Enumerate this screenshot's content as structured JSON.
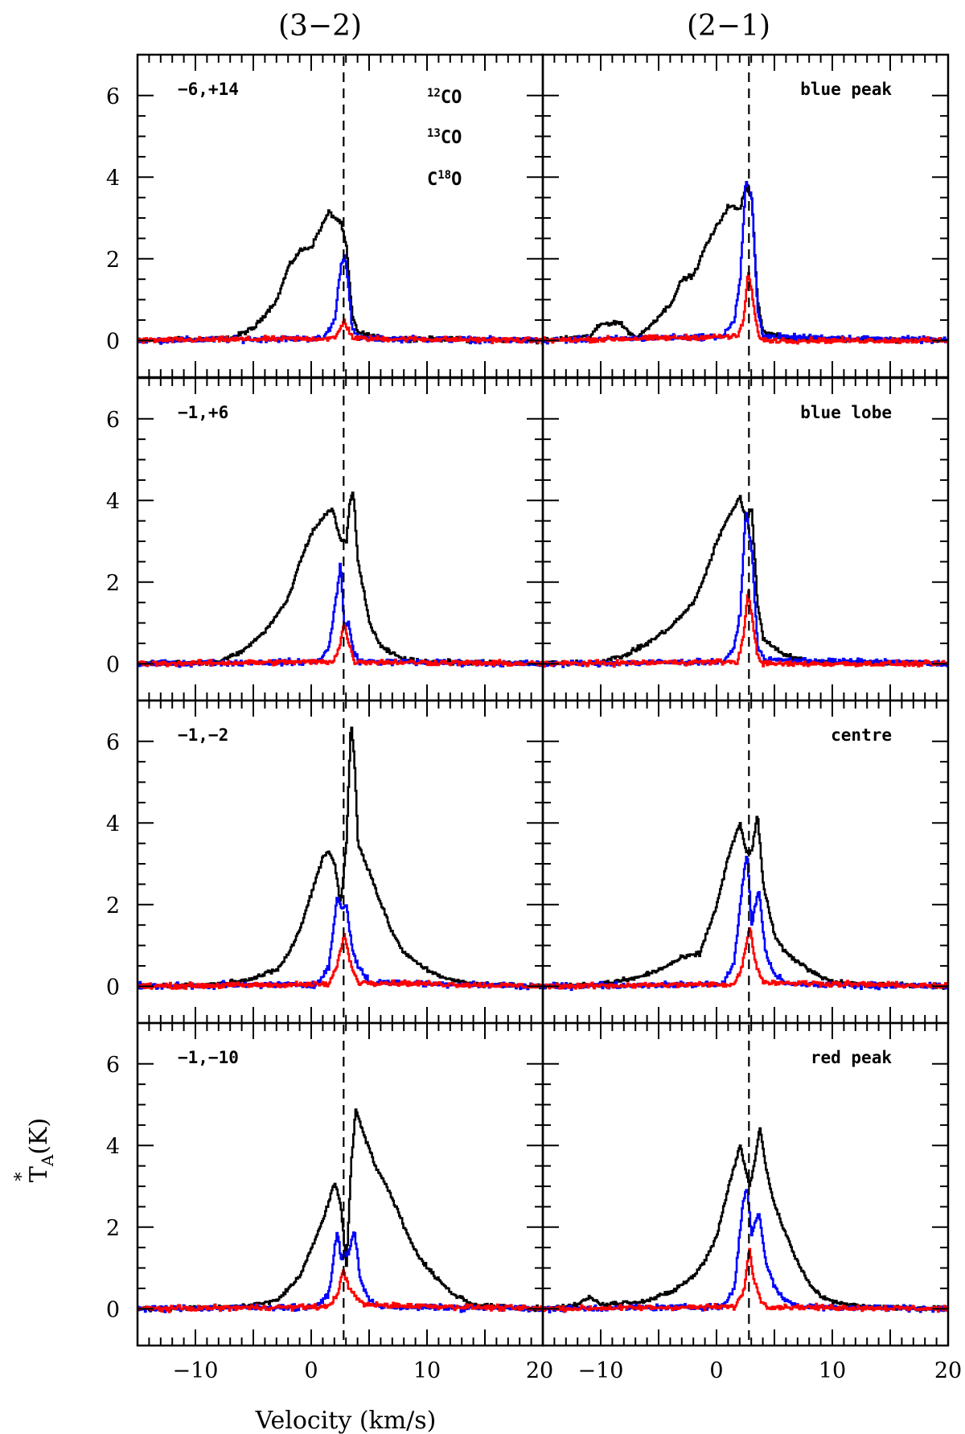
{
  "chart_data": {
    "type": "line",
    "layout": "4 rows x 2 columns of spectra",
    "column_titles": [
      "(3−2)",
      "(2−1)"
    ],
    "xlabel": "Velocity (km/s)",
    "ylabel": "T",
    "ylabel_sub": "A",
    "ylabel_sup": "*",
    "ylabel_suffix": "(K)",
    "xlim": [
      -15,
      20
    ],
    "ylim": [
      -0.9,
      7
    ],
    "x_ticks": [
      -10,
      0,
      10,
      20
    ],
    "x_tick_labels": [
      "−10",
      "0",
      "10",
      "20"
    ],
    "y_ticks": [
      0,
      2,
      4,
      6
    ],
    "y_tick_labels": [
      "0",
      "2",
      "4",
      "6"
    ],
    "reference_velocity": 2.8,
    "legend": [
      {
        "sup": "12",
        "pre": "",
        "post": "CO",
        "color": "#000000"
      },
      {
        "sup": "13",
        "pre": "",
        "post": "CO",
        "color": "#0000ff"
      },
      {
        "sup": "18",
        "pre": "C",
        "post": "O",
        "color": "#ff0000"
      }
    ],
    "series_colors": {
      "co12": "#000000",
      "co13": "#0000ff",
      "c18o": "#ff0000"
    },
    "panels": [
      {
        "row": 0,
        "col": 0,
        "label": "−6,+14",
        "co12": [
          [
            -15,
            0
          ],
          [
            -7,
            0.05
          ],
          [
            -5,
            0.3
          ],
          [
            -3,
            1.0
          ],
          [
            -2,
            1.8
          ],
          [
            -1,
            2.2
          ],
          [
            0,
            2.3
          ],
          [
            0.5,
            2.6
          ],
          [
            1.5,
            3.15
          ],
          [
            2,
            3.0
          ],
          [
            2.5,
            2.9
          ],
          [
            3,
            2.3
          ],
          [
            3.5,
            0.6
          ],
          [
            4,
            0.2
          ],
          [
            6,
            0.05
          ],
          [
            20,
            0
          ]
        ],
        "co13": [
          [
            -15,
            0
          ],
          [
            1,
            0.05
          ],
          [
            2,
            0.5
          ],
          [
            2.5,
            1.8
          ],
          [
            2.8,
            2.1
          ],
          [
            3.1,
            1.6
          ],
          [
            3.5,
            0.3
          ],
          [
            4,
            0.05
          ],
          [
            20,
            0
          ]
        ],
        "c18o": [
          [
            -15,
            0
          ],
          [
            2,
            0.05
          ],
          [
            2.5,
            0.3
          ],
          [
            2.8,
            0.5
          ],
          [
            3.1,
            0.3
          ],
          [
            3.6,
            0.05
          ],
          [
            20,
            0
          ]
        ]
      },
      {
        "row": 0,
        "col": 1,
        "label": "blue peak",
        "co12": [
          [
            -15,
            0
          ],
          [
            -11,
            0.1
          ],
          [
            -10,
            0.4
          ],
          [
            -8.5,
            0.45
          ],
          [
            -7,
            0.05
          ],
          [
            -6,
            0.3
          ],
          [
            -4,
            0.9
          ],
          [
            -3,
            1.5
          ],
          [
            -2,
            1.6
          ],
          [
            -1,
            2.3
          ],
          [
            0,
            2.8
          ],
          [
            1,
            3.3
          ],
          [
            2,
            3.2
          ],
          [
            2.5,
            3.8
          ],
          [
            3,
            3.5
          ],
          [
            3.5,
            1.0
          ],
          [
            4,
            0.2
          ],
          [
            6,
            0.05
          ],
          [
            20,
            0
          ]
        ],
        "co13": [
          [
            -15,
            0
          ],
          [
            0.5,
            0.1
          ],
          [
            1.5,
            0.5
          ],
          [
            2,
            1.5
          ],
          [
            2.5,
            3.9
          ],
          [
            3,
            3.5
          ],
          [
            3.5,
            0.8
          ],
          [
            4,
            0.1
          ],
          [
            20,
            0
          ]
        ],
        "c18o": [
          [
            -15,
            0
          ],
          [
            1.8,
            0.1
          ],
          [
            2.3,
            0.5
          ],
          [
            2.7,
            1.7
          ],
          [
            3.1,
            1.0
          ],
          [
            3.5,
            0.2
          ],
          [
            4,
            0
          ],
          [
            20,
            0
          ]
        ]
      },
      {
        "row": 1,
        "col": 0,
        "label": "−1,+6",
        "co12": [
          [
            -15,
            0
          ],
          [
            -8,
            0.05
          ],
          [
            -6,
            0.3
          ],
          [
            -4,
            0.8
          ],
          [
            -2,
            1.6
          ],
          [
            -1,
            2.5
          ],
          [
            0,
            3.2
          ],
          [
            1,
            3.6
          ],
          [
            1.8,
            3.8
          ],
          [
            2.5,
            3.0
          ],
          [
            3,
            3.0
          ],
          [
            3.3,
            4.0
          ],
          [
            3.6,
            4.2
          ],
          [
            4,
            2.5
          ],
          [
            5,
            1.0
          ],
          [
            6,
            0.4
          ],
          [
            8,
            0.1
          ],
          [
            10,
            0.05
          ],
          [
            20,
            0
          ]
        ],
        "co13": [
          [
            -15,
            0
          ],
          [
            0.5,
            0.05
          ],
          [
            1.5,
            0.4
          ],
          [
            2.2,
            1.8
          ],
          [
            2.5,
            2.5
          ],
          [
            2.8,
            0.9
          ],
          [
            3.2,
            1.0
          ],
          [
            3.6,
            0.3
          ],
          [
            4.2,
            0.05
          ],
          [
            20,
            0
          ]
        ],
        "c18o": [
          [
            -15,
            0
          ],
          [
            1.8,
            0.05
          ],
          [
            2.4,
            0.4
          ],
          [
            2.8,
            1.0
          ],
          [
            3.2,
            0.5
          ],
          [
            3.7,
            0.05
          ],
          [
            20,
            0
          ]
        ]
      },
      {
        "row": 1,
        "col": 1,
        "label": "blue lobe",
        "co12": [
          [
            -15,
            0
          ],
          [
            -10,
            0.05
          ],
          [
            -8,
            0.2
          ],
          [
            -6,
            0.5
          ],
          [
            -4,
            0.9
          ],
          [
            -3,
            1.2
          ],
          [
            -2,
            1.5
          ],
          [
            -1,
            2.2
          ],
          [
            0,
            3.0
          ],
          [
            1,
            3.6
          ],
          [
            2,
            4.1
          ],
          [
            2.5,
            3.5
          ],
          [
            3,
            3.8
          ],
          [
            3.5,
            1.5
          ],
          [
            4,
            0.6
          ],
          [
            5,
            0.4
          ],
          [
            6,
            0.2
          ],
          [
            8,
            0.05
          ],
          [
            20,
            0
          ]
        ],
        "co13": [
          [
            -15,
            0
          ],
          [
            0.5,
            0.05
          ],
          [
            1.5,
            0.4
          ],
          [
            2,
            1.2
          ],
          [
            2.5,
            3.8
          ],
          [
            3,
            2.8
          ],
          [
            3.5,
            0.5
          ],
          [
            4,
            0.1
          ],
          [
            20,
            0
          ]
        ],
        "c18o": [
          [
            -15,
            0
          ],
          [
            1.8,
            0.05
          ],
          [
            2.3,
            0.7
          ],
          [
            2.7,
            1.8
          ],
          [
            3.1,
            1.0
          ],
          [
            3.5,
            0.2
          ],
          [
            4,
            0
          ],
          [
            20,
            0
          ]
        ]
      },
      {
        "row": 2,
        "col": 0,
        "label": "−1,−2",
        "co12": [
          [
            -15,
            0
          ],
          [
            -8,
            0.05
          ],
          [
            -5,
            0.2
          ],
          [
            -3,
            0.4
          ],
          [
            -2,
            0.8
          ],
          [
            -1,
            1.4
          ],
          [
            0,
            2.3
          ],
          [
            1,
            3.2
          ],
          [
            1.5,
            3.3
          ],
          [
            2,
            3.0
          ],
          [
            2.5,
            2.0
          ],
          [
            3,
            3.5
          ],
          [
            3.4,
            6.5
          ],
          [
            3.7,
            5.5
          ],
          [
            4,
            3.5
          ],
          [
            5,
            2.8
          ],
          [
            6,
            2.0
          ],
          [
            7,
            1.3
          ],
          [
            8,
            0.8
          ],
          [
            10,
            0.4
          ],
          [
            12,
            0.15
          ],
          [
            14,
            0.05
          ],
          [
            20,
            0
          ]
        ],
        "co13": [
          [
            -15,
            0
          ],
          [
            0.5,
            0.05
          ],
          [
            1.5,
            0.5
          ],
          [
            2.2,
            2.2
          ],
          [
            2.6,
            1.9
          ],
          [
            3,
            2.0
          ],
          [
            3.5,
            0.9
          ],
          [
            4,
            0.5
          ],
          [
            5,
            0.1
          ],
          [
            20,
            0
          ]
        ],
        "c18o": [
          [
            -15,
            0
          ],
          [
            1.5,
            0.05
          ],
          [
            2.2,
            0.5
          ],
          [
            2.8,
            1.3
          ],
          [
            3.3,
            0.6
          ],
          [
            4,
            0.1
          ],
          [
            20,
            0
          ]
        ]
      },
      {
        "row": 2,
        "col": 1,
        "label": "centre",
        "co12": [
          [
            -15,
            0
          ],
          [
            -10,
            0.05
          ],
          [
            -7,
            0.2
          ],
          [
            -5,
            0.4
          ],
          [
            -3,
            0.7
          ],
          [
            -1.5,
            0.8
          ],
          [
            -1,
            1.2
          ],
          [
            0,
            2.0
          ],
          [
            1,
            3.2
          ],
          [
            2,
            4.0
          ],
          [
            2.5,
            3.3
          ],
          [
            3,
            3.3
          ],
          [
            3.5,
            4.2
          ],
          [
            4,
            2.5
          ],
          [
            5,
            1.2
          ],
          [
            6,
            0.8
          ],
          [
            8,
            0.4
          ],
          [
            10,
            0.1
          ],
          [
            12,
            0.05
          ],
          [
            20,
            0
          ]
        ],
        "co13": [
          [
            -15,
            0
          ],
          [
            0.5,
            0.05
          ],
          [
            1.5,
            0.6
          ],
          [
            2.2,
            2.5
          ],
          [
            2.6,
            3.3
          ],
          [
            3,
            1.5
          ],
          [
            3.6,
            2.4
          ],
          [
            4.2,
            0.8
          ],
          [
            5,
            0.3
          ],
          [
            6,
            0.05
          ],
          [
            20,
            0
          ]
        ],
        "c18o": [
          [
            -15,
            0
          ],
          [
            1.5,
            0.05
          ],
          [
            2.2,
            0.5
          ],
          [
            2.8,
            1.5
          ],
          [
            3.3,
            0.6
          ],
          [
            4,
            0.1
          ],
          [
            20,
            0
          ]
        ]
      },
      {
        "row": 3,
        "col": 0,
        "label": "−1,−10",
        "co12": [
          [
            -15,
            0
          ],
          [
            -6,
            0.05
          ],
          [
            -3,
            0.2
          ],
          [
            -1,
            0.8
          ],
          [
            0,
            1.5
          ],
          [
            1,
            2.2
          ],
          [
            2,
            3.1
          ],
          [
            2.5,
            2.6
          ],
          [
            3,
            1.0
          ],
          [
            3.4,
            3.5
          ],
          [
            3.8,
            4.9
          ],
          [
            4.5,
            4.3
          ],
          [
            5.5,
            3.5
          ],
          [
            7,
            2.7
          ],
          [
            8,
            2.0
          ],
          [
            9,
            1.4
          ],
          [
            10,
            1.0
          ],
          [
            12,
            0.4
          ],
          [
            14,
            0.1
          ],
          [
            16,
            0.05
          ],
          [
            20,
            0
          ]
        ],
        "co13": [
          [
            -15,
            0
          ],
          [
            0.5,
            0.05
          ],
          [
            1.5,
            0.4
          ],
          [
            2.2,
            1.9
          ],
          [
            2.6,
            1.2
          ],
          [
            3.2,
            1.4
          ],
          [
            3.7,
            1.9
          ],
          [
            4.2,
            0.7
          ],
          [
            5,
            0.2
          ],
          [
            6,
            0.05
          ],
          [
            20,
            0
          ]
        ],
        "c18o": [
          [
            -15,
            0
          ],
          [
            1.5,
            0.05
          ],
          [
            2.3,
            0.4
          ],
          [
            2.7,
            1.0
          ],
          [
            3.2,
            0.5
          ],
          [
            3.8,
            0.3
          ],
          [
            4.5,
            0.1
          ],
          [
            20,
            0
          ]
        ]
      },
      {
        "row": 3,
        "col": 1,
        "label": "red peak",
        "co12": [
          [
            -15,
            0
          ],
          [
            -12,
            0.1
          ],
          [
            -11,
            0.3
          ],
          [
            -10,
            0.1
          ],
          [
            -6,
            0.2
          ],
          [
            -4,
            0.4
          ],
          [
            -2,
            0.8
          ],
          [
            -1,
            1.2
          ],
          [
            0,
            1.8
          ],
          [
            1,
            3.0
          ],
          [
            2,
            4.0
          ],
          [
            2.8,
            3.0
          ],
          [
            3.2,
            3.5
          ],
          [
            3.7,
            4.5
          ],
          [
            4.2,
            3.5
          ],
          [
            5,
            2.5
          ],
          [
            6,
            1.8
          ],
          [
            7,
            1.1
          ],
          [
            8,
            0.6
          ],
          [
            9,
            0.3
          ],
          [
            11,
            0.1
          ],
          [
            13,
            0.05
          ],
          [
            20,
            0
          ]
        ],
        "co13": [
          [
            -15,
            0
          ],
          [
            0.5,
            0.05
          ],
          [
            1.5,
            0.5
          ],
          [
            2.2,
            2.5
          ],
          [
            2.6,
            3.0
          ],
          [
            3,
            1.8
          ],
          [
            3.6,
            2.4
          ],
          [
            4.2,
            1.2
          ],
          [
            5,
            0.5
          ],
          [
            6,
            0.2
          ],
          [
            7,
            0.05
          ],
          [
            20,
            0
          ]
        ],
        "c18o": [
          [
            -15,
            0
          ],
          [
            1.5,
            0.05
          ],
          [
            2.3,
            0.4
          ],
          [
            2.8,
            1.5
          ],
          [
            3.2,
            0.7
          ],
          [
            3.8,
            0.2
          ],
          [
            4.5,
            0.05
          ],
          [
            20,
            0
          ]
        ]
      }
    ]
  }
}
